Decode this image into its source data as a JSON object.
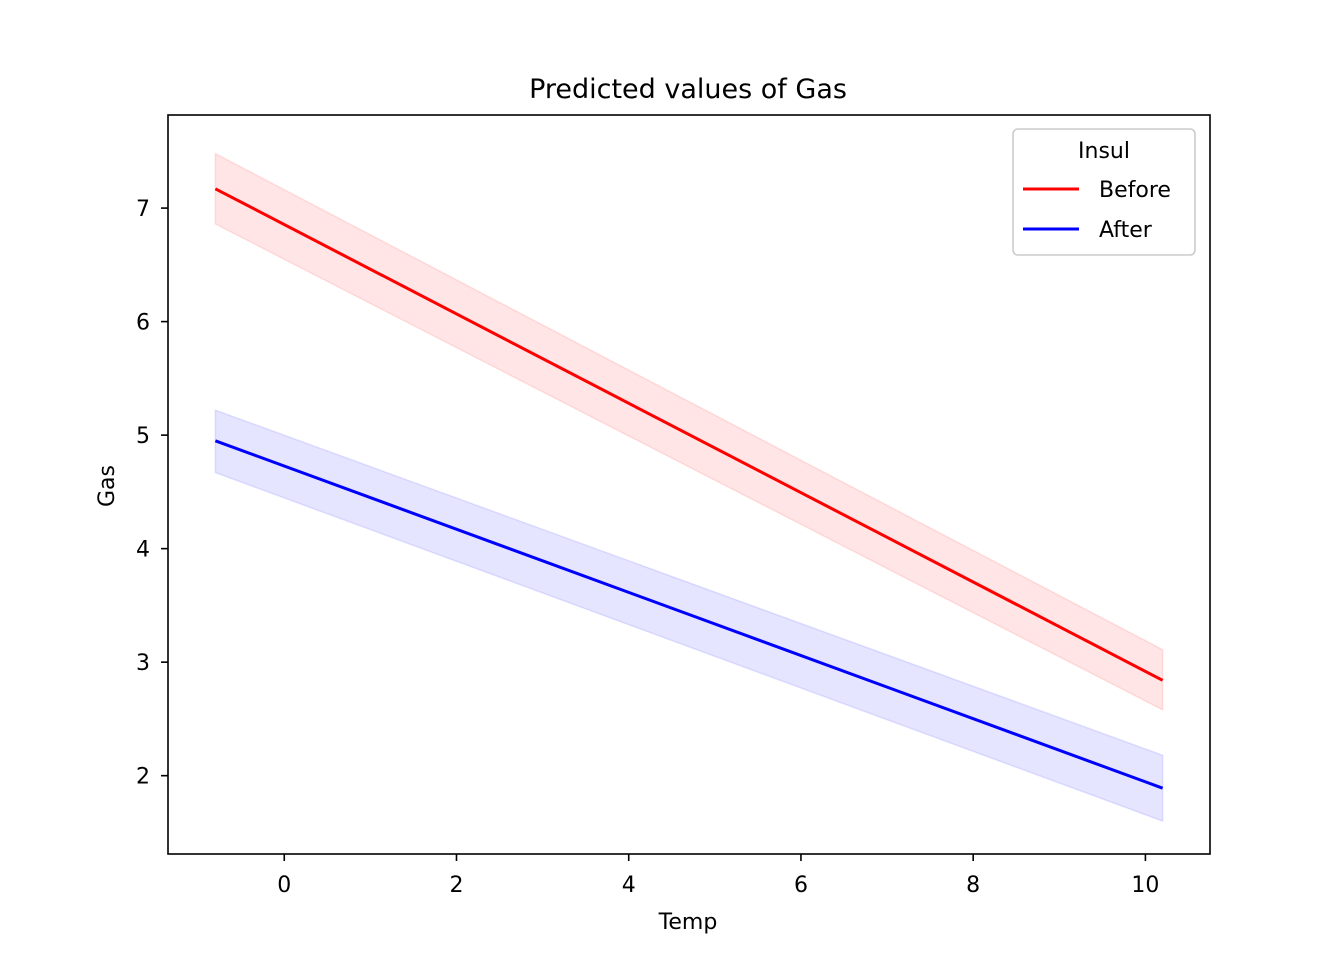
{
  "chart_data": {
    "type": "line",
    "title": "Predicted values of Gas",
    "xlabel": "Temp",
    "ylabel": "Gas",
    "xlim": [
      -1.35,
      10.75
    ],
    "ylim": [
      1.31,
      7.82
    ],
    "xticks": [
      0,
      2,
      4,
      6,
      8,
      10
    ],
    "yticks": [
      2,
      3,
      4,
      5,
      6,
      7
    ],
    "grid": false,
    "legend": {
      "title": "Insul",
      "position": "top-right"
    },
    "series": [
      {
        "name": "Before",
        "color": "#ff0000",
        "x": [
          -0.8,
          10.2
        ],
        "y": [
          7.17,
          2.84
        ],
        "ci_lower": [
          6.86,
          2.58
        ],
        "ci_upper": [
          7.48,
          3.11
        ]
      },
      {
        "name": "After",
        "color": "#0000ff",
        "x": [
          -0.8,
          10.2
        ],
        "y": [
          4.95,
          1.89
        ],
        "ci_lower": [
          4.67,
          1.6
        ],
        "ci_upper": [
          5.22,
          2.18
        ]
      }
    ]
  }
}
